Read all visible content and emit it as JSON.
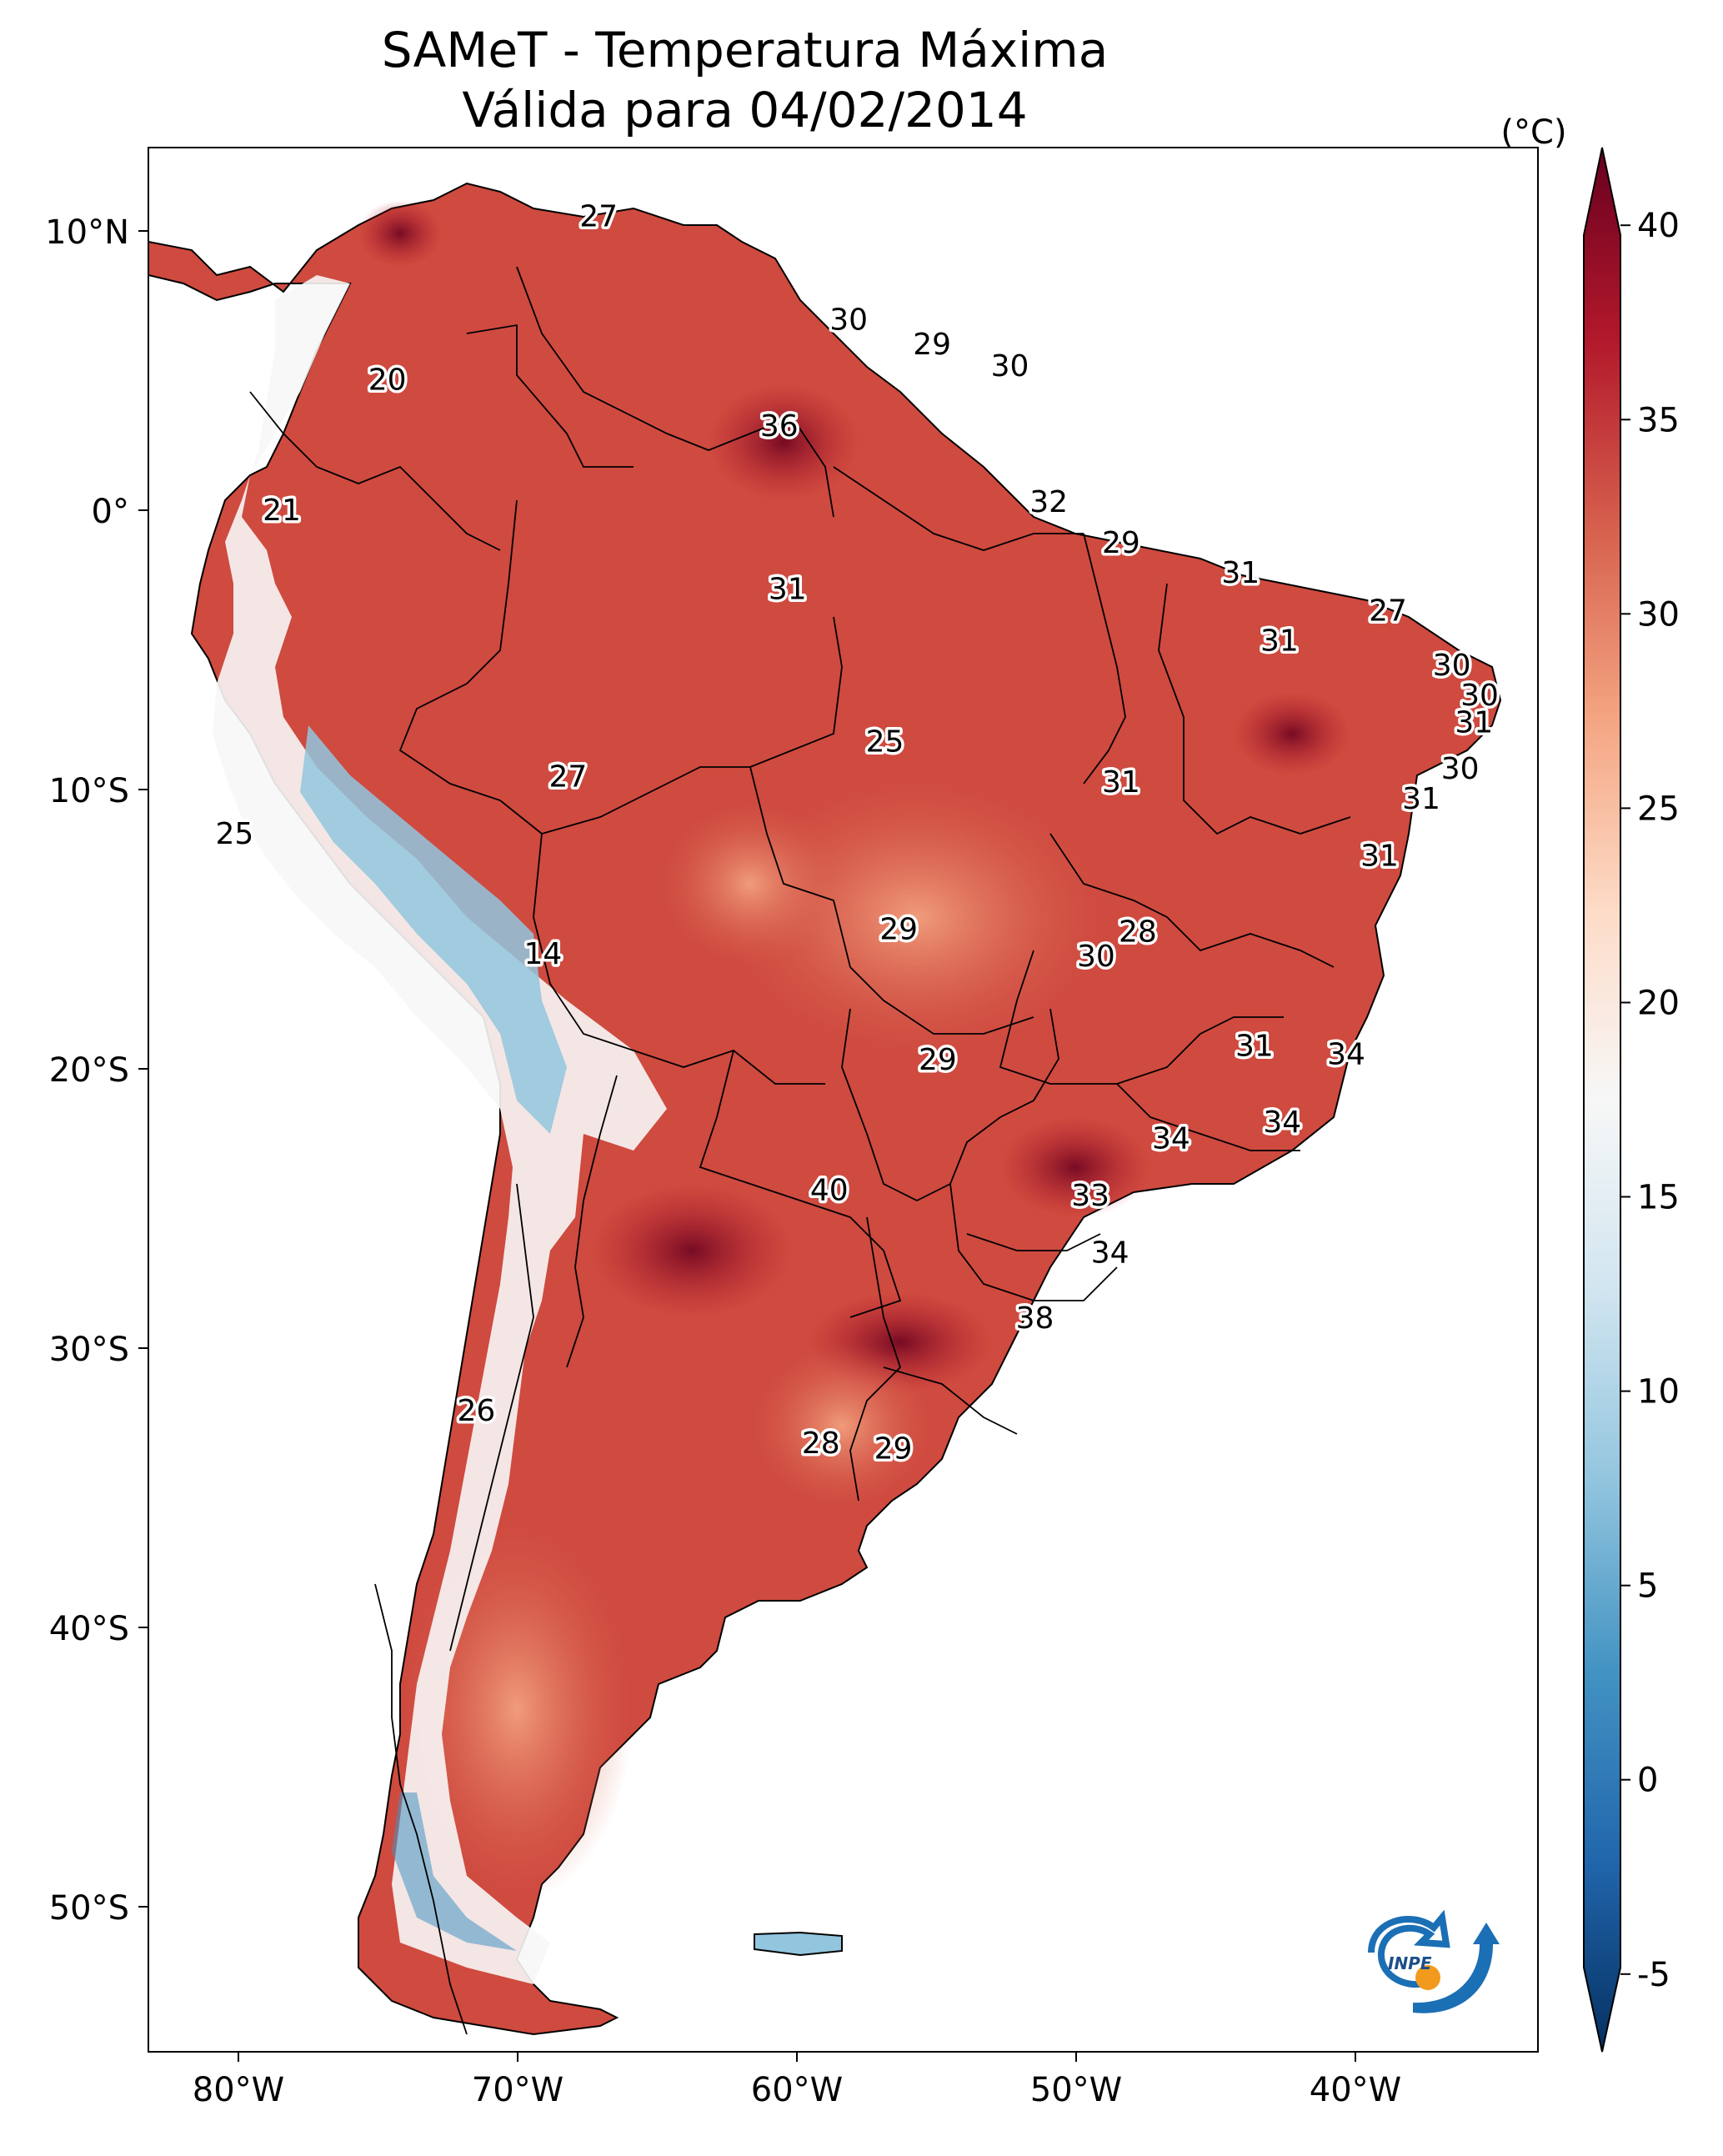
{
  "title": {
    "line1": "SAMeT - Temperatura Máxima",
    "line2": "Válida para 04/02/2014"
  },
  "axes": {
    "lon_ticks": [
      "80°W",
      "70°W",
      "60°W",
      "50°W",
      "40°W"
    ],
    "lat_ticks": [
      "10°N",
      "0°",
      "10°S",
      "20°S",
      "30°S",
      "40°S",
      "50°S"
    ]
  },
  "colorbar": {
    "unit": "(°C)",
    "min": -7,
    "max": 42,
    "ticks": [
      "40",
      "35",
      "30",
      "25",
      "20",
      "15",
      "10",
      "5",
      "0",
      "-5"
    ],
    "tick_values": [
      40,
      35,
      30,
      25,
      20,
      15,
      10,
      5,
      0,
      -5
    ],
    "colormap": "RdBu_r",
    "colors": [
      "#053061",
      "#2166ac",
      "#4393c3",
      "#92c5de",
      "#d1e5f0",
      "#f7f7f7",
      "#fddbc7",
      "#f4a582",
      "#d6604d",
      "#b2182b",
      "#67001f"
    ]
  },
  "logo": {
    "text": "INPE"
  },
  "chart_data": {
    "type": "map",
    "title": "SAMeT - Temperatura Máxima Válida para 04/02/2014",
    "extent": {
      "lon": [
        -83,
        -33
      ],
      "lat": [
        -57,
        13
      ]
    },
    "field_colors": {
      "hot": "#b2182b",
      "warm": "#d6604d",
      "mild": "#f4a582",
      "cool": "#f7f7f7",
      "cold": "#92c5de",
      "colder": "#4393c3"
    },
    "station_labels": [
      {
        "text": "27",
        "lon": -66.8,
        "lat": 10.5
      },
      {
        "text": "20",
        "lon": -74.4,
        "lat": 4.5
      },
      {
        "text": "30",
        "lon": -57.8,
        "lat": 6.7
      },
      {
        "text": "29",
        "lon": -54.8,
        "lat": 5.8
      },
      {
        "text": "30",
        "lon": -52.0,
        "lat": 5.0
      },
      {
        "text": "36",
        "lon": -60.3,
        "lat": 2.8
      },
      {
        "text": "21",
        "lon": -78.2,
        "lat": -0.3
      },
      {
        "text": "32",
        "lon": -50.6,
        "lat": 0.0
      },
      {
        "text": "29",
        "lon": -48.0,
        "lat": -1.5
      },
      {
        "text": "31",
        "lon": -60.0,
        "lat": -3.2
      },
      {
        "text": "31",
        "lon": -43.7,
        "lat": -2.6
      },
      {
        "text": "27",
        "lon": -38.4,
        "lat": -4.0
      },
      {
        "text": "31",
        "lon": -42.3,
        "lat": -5.1
      },
      {
        "text": "30",
        "lon": -36.1,
        "lat": -6.0
      },
      {
        "text": "30",
        "lon": -35.1,
        "lat": -7.1
      },
      {
        "text": "31",
        "lon": -35.3,
        "lat": -8.1
      },
      {
        "text": "25",
        "lon": -56.5,
        "lat": -8.8
      },
      {
        "text": "30",
        "lon": -35.8,
        "lat": -9.8
      },
      {
        "text": "27",
        "lon": -67.9,
        "lat": -10.1
      },
      {
        "text": "31",
        "lon": -48.0,
        "lat": -10.3
      },
      {
        "text": "31",
        "lon": -37.2,
        "lat": -10.9
      },
      {
        "text": "25",
        "lon": -79.9,
        "lat": -12.2
      },
      {
        "text": "31",
        "lon": -38.7,
        "lat": -13.0
      },
      {
        "text": "29",
        "lon": -56.0,
        "lat": -15.7
      },
      {
        "text": "28",
        "lon": -47.4,
        "lat": -15.8
      },
      {
        "text": "14",
        "lon": -68.8,
        "lat": -16.6
      },
      {
        "text": "30",
        "lon": -48.9,
        "lat": -16.7
      },
      {
        "text": "31",
        "lon": -43.2,
        "lat": -20.0
      },
      {
        "text": "34",
        "lon": -39.9,
        "lat": -20.3
      },
      {
        "text": "29",
        "lon": -54.6,
        "lat": -20.5
      },
      {
        "text": "34",
        "lon": -42.2,
        "lat": -22.8
      },
      {
        "text": "34",
        "lon": -46.2,
        "lat": -23.4
      },
      {
        "text": "40",
        "lon": -58.5,
        "lat": -25.3
      },
      {
        "text": "33",
        "lon": -49.1,
        "lat": -25.5
      },
      {
        "text": "34",
        "lon": -48.4,
        "lat": -27.6
      },
      {
        "text": "38",
        "lon": -51.1,
        "lat": -30.0
      },
      {
        "text": "26",
        "lon": -71.2,
        "lat": -33.4
      },
      {
        "text": "28",
        "lon": -58.8,
        "lat": -34.6
      },
      {
        "text": "29",
        "lon": -56.2,
        "lat": -34.8
      }
    ]
  }
}
